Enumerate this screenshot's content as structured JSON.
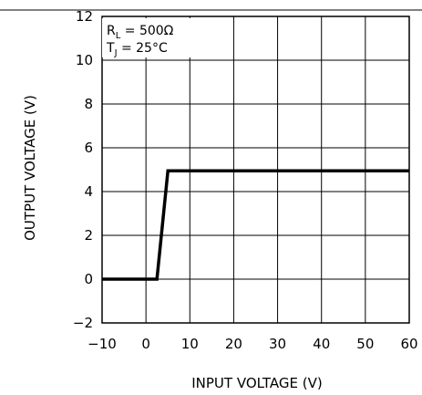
{
  "chart_data": {
    "type": "line",
    "title": "",
    "xlabel": "INPUT VOLTAGE (V)",
    "ylabel": "OUTPUT VOLTAGE (V)",
    "xlim": [
      -10,
      60
    ],
    "ylim": [
      -2,
      12
    ],
    "x_ticks": [
      -10,
      0,
      10,
      20,
      30,
      40,
      50,
      60
    ],
    "y_ticks": [
      -2,
      0,
      2,
      4,
      6,
      8,
      10,
      12
    ],
    "x_tick_labels": [
      "−10",
      "0",
      "10",
      "20",
      "30",
      "40",
      "50",
      "60"
    ],
    "y_tick_labels": [
      "−2",
      "0",
      "2",
      "4",
      "6",
      "8",
      "10",
      "12"
    ],
    "grid": true,
    "annotations": {
      "rl_main": "R",
      "rl_sub": "L",
      "rl_value": " = 500Ω",
      "tj_main": "T",
      "tj_sub": "J",
      "tj_value": " = 25°C"
    },
    "series": [
      {
        "x": [
          -10,
          2.5,
          5,
          60
        ],
        "y": [
          0,
          0,
          4.95,
          4.95
        ]
      }
    ]
  }
}
